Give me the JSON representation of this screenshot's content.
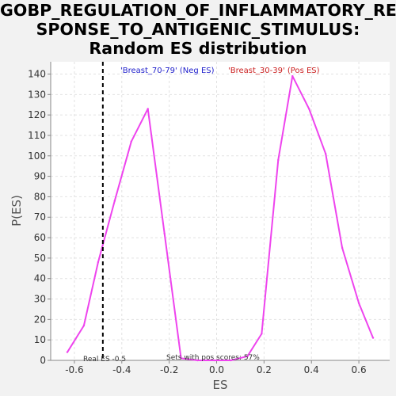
{
  "chart_data": {
    "type": "line",
    "title_lines": [
      "GOBP_REGULATION_OF_INFLAMMATORY_RE",
      "SPONSE_TO_ANTIGENIC_STIMULUS:",
      "Random ES distribution"
    ],
    "xlabel": "ES",
    "ylabel": "P(ES)",
    "xlim": [
      -0.7,
      0.73
    ],
    "ylim": [
      0,
      146
    ],
    "x_ticks": [
      -0.6,
      -0.4,
      -0.2,
      0.0,
      0.2,
      0.4,
      0.6
    ],
    "x_tick_labels": [
      "-0.6",
      "-0.4",
      "-0.2",
      "0.0",
      "0.2",
      "0.4",
      "0.6"
    ],
    "y_ticks": [
      0,
      10,
      20,
      30,
      40,
      50,
      60,
      70,
      80,
      90,
      100,
      110,
      120,
      130,
      140
    ],
    "y_tick_labels": [
      "0",
      "10",
      "20",
      "30",
      "40",
      "50",
      "60",
      "70",
      "80",
      "90",
      "100",
      "110",
      "120",
      "130",
      "140"
    ],
    "grid": true,
    "series": [
      {
        "color": "#ee44ee",
        "x": [
          -0.63,
          -0.56,
          -0.5,
          -0.43,
          -0.36,
          -0.29,
          -0.22,
          -0.15,
          -0.08,
          -0.01,
          0.06,
          0.13,
          0.19,
          0.26,
          0.32,
          0.39,
          0.46,
          0.53,
          0.6,
          0.66
        ],
        "y": [
          4,
          17,
          48,
          78,
          107,
          123,
          62,
          1,
          0,
          0,
          0,
          2,
          13,
          98,
          139,
          123,
          101,
          55,
          28,
          11
        ]
      }
    ],
    "real_es": -0.48,
    "annotations": {
      "neg_label": "'Breast_70-79' (Neg ES)",
      "neg_color": "#2222cc",
      "pos_label": "'Breast_30-39' (Pos ES)",
      "pos_color": "#cc2222",
      "real_es_label": "Real ES -0.5",
      "pos_scores_label": "Sets with pos scores: 57%"
    }
  }
}
